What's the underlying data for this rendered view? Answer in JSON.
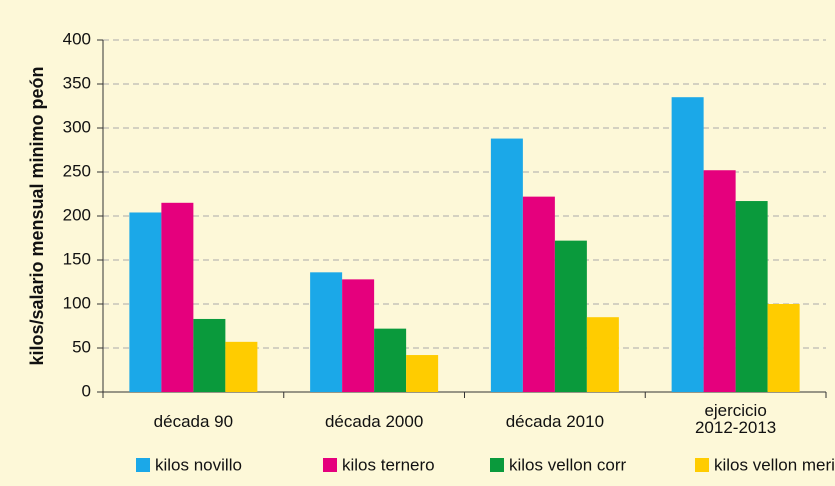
{
  "chart_data": {
    "type": "bar",
    "y_label": "kilos/salario mensual minimo peón",
    "categories": [
      "década 90",
      "década 2000",
      "década 2010",
      "ejercicio 2012-2013"
    ],
    "series": [
      {
        "name": "kilos novillo",
        "color": "#1ba8e8",
        "values": [
          204,
          136,
          288,
          335
        ]
      },
      {
        "name": "kilos ternero",
        "color": "#e5007d",
        "values": [
          215,
          128,
          222,
          252
        ]
      },
      {
        "name": "kilos vellon corr",
        "color": "#0a9a3c",
        "values": [
          83,
          72,
          172,
          217
        ]
      },
      {
        "name": "kilos vellon merino",
        "color": "#ffcc00",
        "values": [
          57,
          42,
          85,
          100
        ]
      }
    ],
    "ylim": [
      0,
      400
    ],
    "yticks": [
      0,
      50,
      100,
      150,
      200,
      250,
      300,
      350,
      400
    ],
    "grid": true
  }
}
